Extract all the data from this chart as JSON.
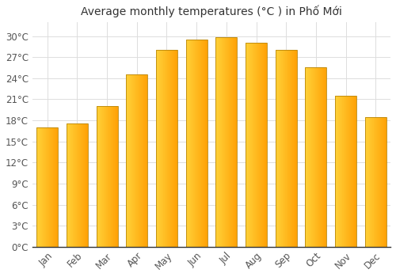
{
  "title": "Average monthly temperatures (°C ) in Phố Mới",
  "months": [
    "Jan",
    "Feb",
    "Mar",
    "Apr",
    "May",
    "Jun",
    "Jul",
    "Aug",
    "Sep",
    "Oct",
    "Nov",
    "Dec"
  ],
  "values": [
    17.0,
    17.5,
    20.0,
    24.5,
    28.0,
    29.5,
    29.8,
    29.0,
    28.0,
    25.5,
    21.5,
    18.5
  ],
  "yticks": [
    0,
    3,
    6,
    9,
    12,
    15,
    18,
    21,
    24,
    27,
    30
  ],
  "ylim": [
    0,
    32
  ],
  "bar_color_left": "#FFCA28",
  "bar_color_right": "#FFA000",
  "border_color": "#B8860B",
  "background_color": "#ffffff",
  "grid_color": "#dddddd",
  "title_fontsize": 10,
  "tick_fontsize": 8.5
}
